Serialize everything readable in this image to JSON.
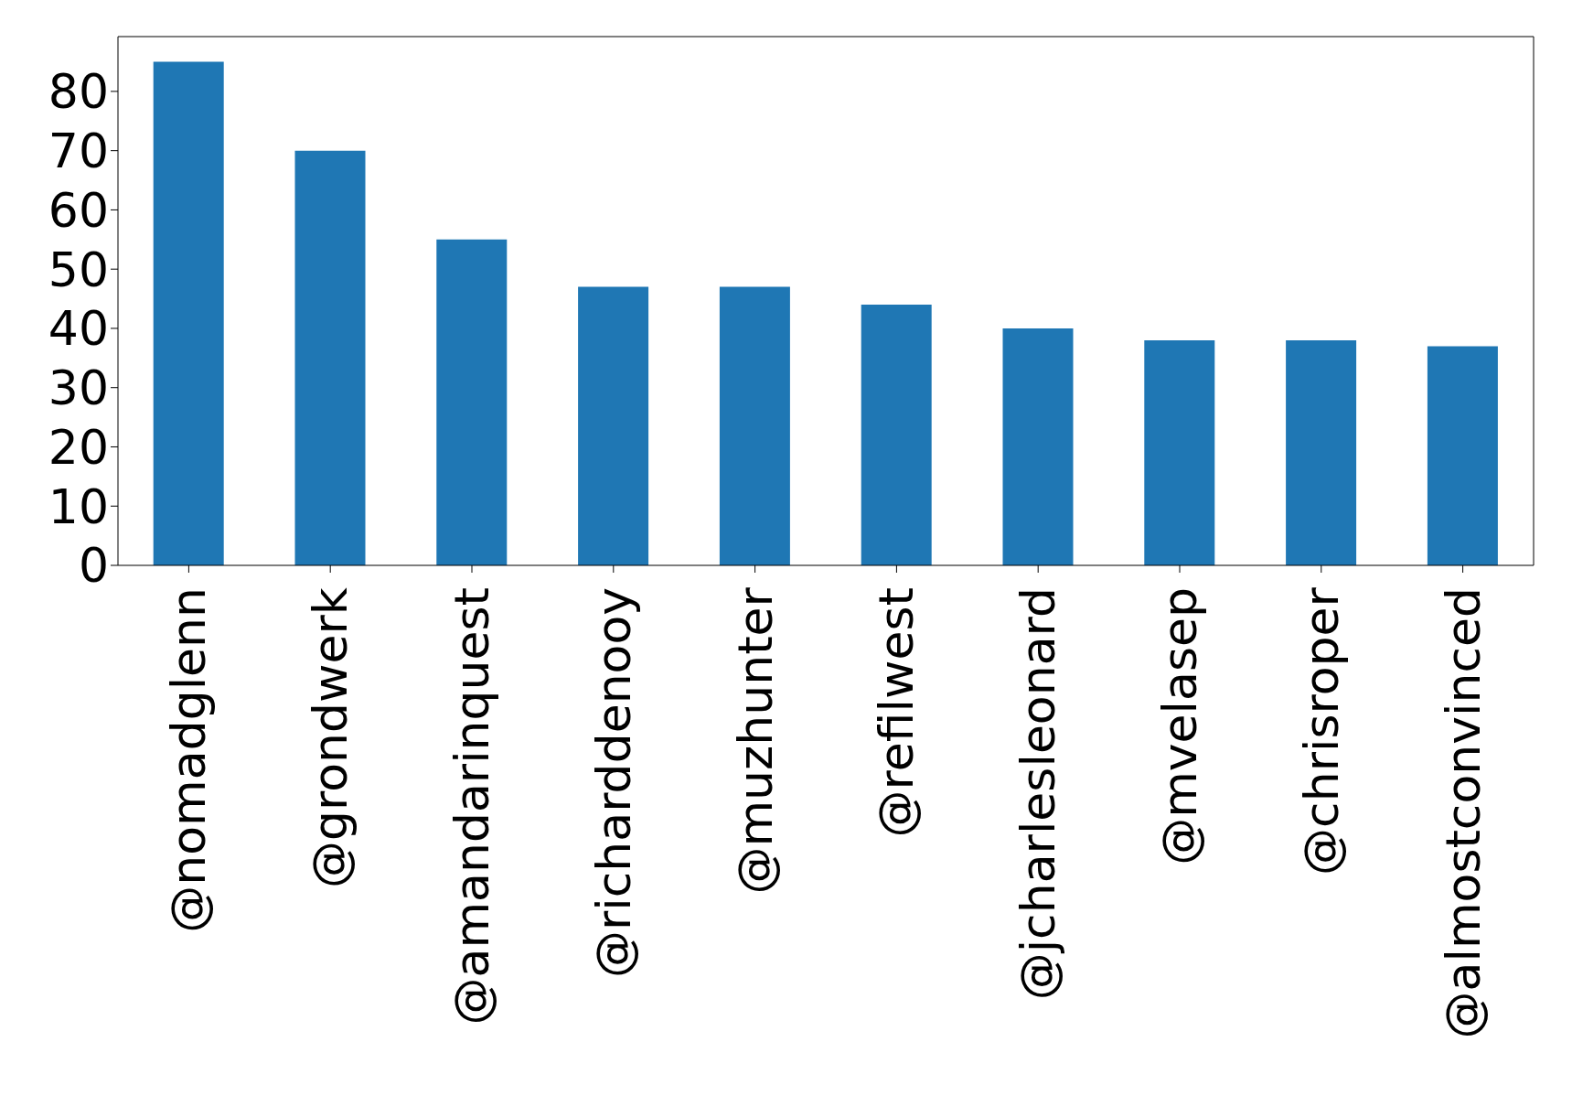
{
  "chart_data": {
    "type": "bar",
    "categories": [
      "@nomadglenn",
      "@grondwerk",
      "@amandarinquest",
      "@richarddenooy",
      "@muzhunter",
      "@refilwest",
      "@jcharlesleonard",
      "@mvelasep",
      "@chrisroper",
      "@almostconvinced"
    ],
    "values": [
      85,
      70,
      55,
      47,
      47,
      44,
      40,
      38,
      38,
      37
    ],
    "color": "#1f77b4",
    "ylim": [
      0,
      89.25
    ],
    "yticks": [
      0,
      10,
      20,
      30,
      40,
      50,
      60,
      70,
      80
    ]
  }
}
